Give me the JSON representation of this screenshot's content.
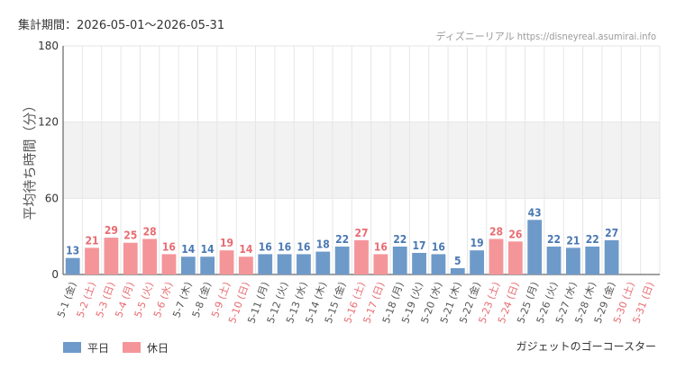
{
  "header": {
    "period": "集計期間：2026-05-01〜2026-05-31",
    "source": "ディズニーリアル https://disneyreal.asumirai.info"
  },
  "footer": {
    "subject": "ガジェットのゴーコースター"
  },
  "colors": {
    "weekday": "#6e9ac9",
    "holiday": "#f4959a",
    "weekday_label": "#4a78b3",
    "holiday_label": "#e86c72",
    "axis_label": "#555555",
    "band": "#f2f2f2",
    "grid": "#e6e6e6"
  },
  "chart_data": {
    "type": "bar",
    "ylabel": "平均待ち時間（分）",
    "ylim": [
      0,
      180
    ],
    "yticks": [
      0,
      60,
      120,
      180
    ],
    "shaded_band": [
      60,
      120
    ],
    "categories": [
      "5-1 (金)",
      "5-2 (土)",
      "5-3 (日)",
      "5-4 (月)",
      "5-5 (火)",
      "5-6 (水)",
      "5-7 (木)",
      "5-8 (金)",
      "5-9 (土)",
      "5-10 (日)",
      "5-11 (月)",
      "5-12 (火)",
      "5-13 (水)",
      "5-14 (木)",
      "5-15 (金)",
      "5-16 (土)",
      "5-17 (日)",
      "5-18 (月)",
      "5-19 (火)",
      "5-20 (水)",
      "5-21 (木)",
      "5-22 (金)",
      "5-23 (土)",
      "5-24 (日)",
      "5-25 (月)",
      "5-26 (火)",
      "5-27 (水)",
      "5-28 (木)",
      "5-29 (金)",
      "5-30 (土)",
      "5-31 (日)"
    ],
    "values": [
      13,
      21,
      29,
      25,
      28,
      16,
      14,
      14,
      19,
      14,
      16,
      16,
      16,
      18,
      22,
      27,
      16,
      22,
      17,
      16,
      5,
      19,
      28,
      26,
      43,
      22,
      21,
      22,
      27,
      null,
      null
    ],
    "day_type": [
      "weekday",
      "holiday",
      "holiday",
      "holiday",
      "holiday",
      "holiday",
      "weekday",
      "weekday",
      "holiday",
      "holiday",
      "weekday",
      "weekday",
      "weekday",
      "weekday",
      "weekday",
      "holiday",
      "holiday",
      "weekday",
      "weekday",
      "weekday",
      "weekday",
      "weekday",
      "holiday",
      "holiday",
      "weekday",
      "weekday",
      "weekday",
      "weekday",
      "weekday",
      "holiday",
      "holiday"
    ],
    "legend": [
      {
        "key": "weekday",
        "label": "平日"
      },
      {
        "key": "holiday",
        "label": "休日"
      }
    ],
    "legend_position": "bottom-left",
    "grid": true
  }
}
